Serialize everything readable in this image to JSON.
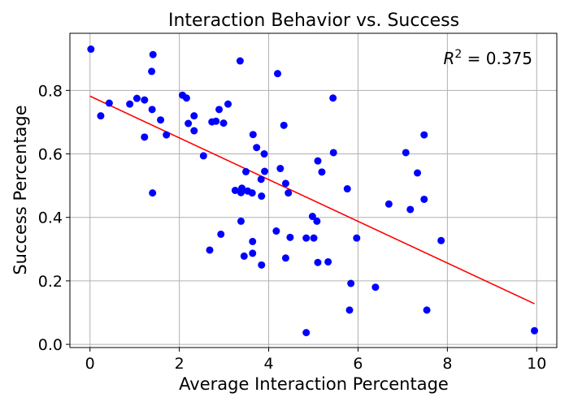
{
  "chart_data": {
    "type": "scatter",
    "title": "Interaction Behavior vs. Success",
    "xlabel": "Average Interaction Percentage",
    "ylabel": "Success Percentage",
    "xlim": [
      -0.45,
      10.45
    ],
    "ylim": [
      -0.01,
      0.98
    ],
    "xticks": [
      0,
      2,
      4,
      6,
      8,
      10
    ],
    "yticks": [
      0.0,
      0.2,
      0.4,
      0.6,
      0.8
    ],
    "xtick_labels": [
      "0",
      "2",
      "4",
      "6",
      "8",
      "10"
    ],
    "ytick_labels": [
      "0.0",
      "0.2",
      "0.4",
      "0.6",
      "0.8"
    ],
    "grid": true,
    "point_color": "#0000ff",
    "fit_color": "#ff0000",
    "annotation": {
      "prefix": "R",
      "exponent": "2",
      "value": " = 0.375",
      "placement": "top-right"
    },
    "fit_line": {
      "x": [
        0,
        9.95
      ],
      "y": [
        0.782,
        0.128
      ]
    },
    "points": [
      {
        "x": 0.02,
        "y": 0.93
      },
      {
        "x": 0.24,
        "y": 0.72
      },
      {
        "x": 0.43,
        "y": 0.76
      },
      {
        "x": 0.89,
        "y": 0.757
      },
      {
        "x": 1.05,
        "y": 0.775
      },
      {
        "x": 1.22,
        "y": 0.653
      },
      {
        "x": 1.22,
        "y": 0.77
      },
      {
        "x": 1.38,
        "y": 0.86
      },
      {
        "x": 1.41,
        "y": 0.913
      },
      {
        "x": 1.39,
        "y": 0.74
      },
      {
        "x": 1.4,
        "y": 0.477
      },
      {
        "x": 1.58,
        "y": 0.707
      },
      {
        "x": 1.71,
        "y": 0.66
      },
      {
        "x": 2.07,
        "y": 0.785
      },
      {
        "x": 2.16,
        "y": 0.776
      },
      {
        "x": 2.2,
        "y": 0.696
      },
      {
        "x": 2.33,
        "y": 0.72
      },
      {
        "x": 2.33,
        "y": 0.673
      },
      {
        "x": 2.54,
        "y": 0.594
      },
      {
        "x": 2.68,
        "y": 0.297
      },
      {
        "x": 2.73,
        "y": 0.701
      },
      {
        "x": 2.82,
        "y": 0.703
      },
      {
        "x": 2.89,
        "y": 0.74
      },
      {
        "x": 2.93,
        "y": 0.347
      },
      {
        "x": 2.99,
        "y": 0.697
      },
      {
        "x": 3.09,
        "y": 0.757
      },
      {
        "x": 3.25,
        "y": 0.485
      },
      {
        "x": 3.36,
        "y": 0.893
      },
      {
        "x": 3.38,
        "y": 0.388
      },
      {
        "x": 3.38,
        "y": 0.478
      },
      {
        "x": 3.4,
        "y": 0.492
      },
      {
        "x": 3.45,
        "y": 0.278
      },
      {
        "x": 3.49,
        "y": 0.544
      },
      {
        "x": 3.53,
        "y": 0.483
      },
      {
        "x": 3.63,
        "y": 0.477
      },
      {
        "x": 3.64,
        "y": 0.324
      },
      {
        "x": 3.64,
        "y": 0.287
      },
      {
        "x": 3.65,
        "y": 0.661
      },
      {
        "x": 3.73,
        "y": 0.62
      },
      {
        "x": 3.83,
        "y": 0.52
      },
      {
        "x": 3.84,
        "y": 0.467
      },
      {
        "x": 3.84,
        "y": 0.25
      },
      {
        "x": 3.9,
        "y": 0.6
      },
      {
        "x": 3.91,
        "y": 0.545
      },
      {
        "x": 4.17,
        "y": 0.357
      },
      {
        "x": 4.2,
        "y": 0.853
      },
      {
        "x": 4.26,
        "y": 0.554
      },
      {
        "x": 4.34,
        "y": 0.69
      },
      {
        "x": 4.38,
        "y": 0.272
      },
      {
        "x": 4.38,
        "y": 0.507
      },
      {
        "x": 4.44,
        "y": 0.477
      },
      {
        "x": 4.48,
        "y": 0.337
      },
      {
        "x": 4.84,
        "y": 0.037
      },
      {
        "x": 4.84,
        "y": 0.335
      },
      {
        "x": 4.98,
        "y": 0.403
      },
      {
        "x": 5.01,
        "y": 0.335
      },
      {
        "x": 5.08,
        "y": 0.388
      },
      {
        "x": 5.1,
        "y": 0.258
      },
      {
        "x": 5.1,
        "y": 0.578
      },
      {
        "x": 5.19,
        "y": 0.543
      },
      {
        "x": 5.33,
        "y": 0.26
      },
      {
        "x": 5.44,
        "y": 0.776
      },
      {
        "x": 5.45,
        "y": 0.604
      },
      {
        "x": 5.76,
        "y": 0.49
      },
      {
        "x": 5.81,
        "y": 0.108
      },
      {
        "x": 5.84,
        "y": 0.192
      },
      {
        "x": 5.97,
        "y": 0.335
      },
      {
        "x": 6.39,
        "y": 0.18
      },
      {
        "x": 6.69,
        "y": 0.442
      },
      {
        "x": 7.07,
        "y": 0.604
      },
      {
        "x": 7.17,
        "y": 0.425
      },
      {
        "x": 7.33,
        "y": 0.54
      },
      {
        "x": 7.48,
        "y": 0.66
      },
      {
        "x": 7.48,
        "y": 0.457
      },
      {
        "x": 7.54,
        "y": 0.108
      },
      {
        "x": 7.86,
        "y": 0.327
      },
      {
        "x": 9.95,
        "y": 0.043
      }
    ]
  }
}
